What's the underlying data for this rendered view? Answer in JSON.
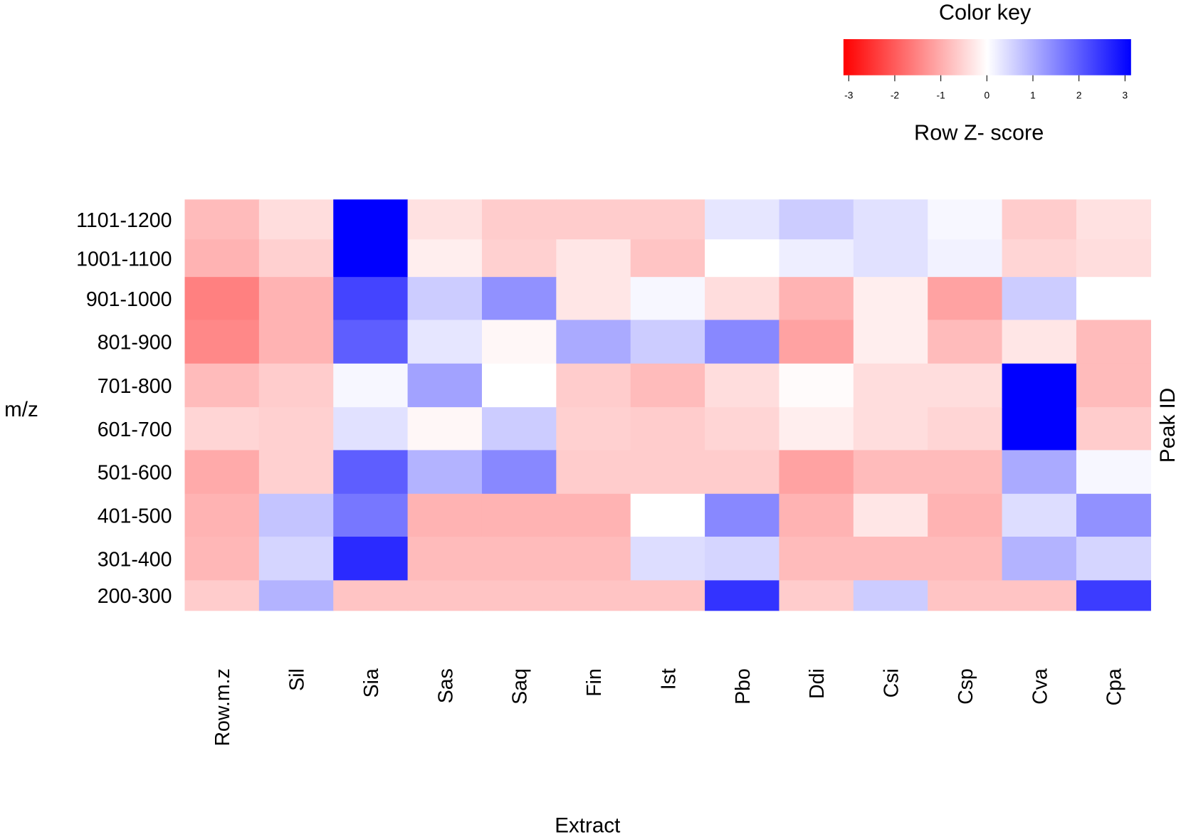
{
  "chart_data": {
    "type": "heatmap",
    "xlabel": "Extract",
    "ylabel": "m/z",
    "ylabel_right": "Peak ID",
    "columns": [
      "Row.m.z",
      "Sil",
      "Sia",
      "Sas",
      "Saq",
      "Fin",
      "Ist",
      "Pbo",
      "Ddi",
      "Csi",
      "Csp",
      "Cva",
      "Cpa"
    ],
    "rows": [
      "1101-1200",
      "1001-1100",
      "901-1000",
      "801-900",
      "701-800",
      "601-700",
      "501-600",
      "401-500",
      "301-400",
      "200-300"
    ],
    "values": [
      [
        -0.8,
        -0.4,
        3.0,
        -0.35,
        -0.6,
        -0.6,
        -0.6,
        0.3,
        0.6,
        0.35,
        0.1,
        -0.6,
        -0.35
      ],
      [
        -0.9,
        -0.55,
        3.0,
        -0.2,
        -0.55,
        -0.3,
        -0.7,
        0.0,
        0.2,
        0.35,
        0.15,
        -0.5,
        -0.4
      ],
      [
        -1.5,
        -0.9,
        2.2,
        0.6,
        1.3,
        -0.3,
        0.1,
        -0.4,
        -0.9,
        -0.2,
        -1.1,
        0.6,
        0.0
      ],
      [
        -1.4,
        -0.9,
        1.9,
        0.3,
        -0.1,
        1.0,
        0.6,
        1.4,
        -1.1,
        -0.2,
        -0.8,
        -0.3,
        -0.8
      ],
      [
        -0.8,
        -0.6,
        0.1,
        1.1,
        0.0,
        -0.6,
        -0.8,
        -0.4,
        -0.05,
        -0.4,
        -0.4,
        3.0,
        -0.8
      ],
      [
        -0.5,
        -0.55,
        0.35,
        -0.1,
        0.6,
        -0.55,
        -0.6,
        -0.5,
        -0.2,
        -0.4,
        -0.5,
        3.0,
        -0.6
      ],
      [
        -1.0,
        -0.55,
        1.9,
        0.9,
        1.4,
        -0.6,
        -0.6,
        -0.6,
        -1.1,
        -0.8,
        -0.8,
        1.0,
        0.1
      ],
      [
        -0.9,
        0.7,
        1.6,
        -0.9,
        -0.9,
        -0.9,
        0.0,
        1.4,
        -0.9,
        -0.3,
        -0.9,
        0.4,
        1.3
      ],
      [
        -0.85,
        0.5,
        2.5,
        -0.8,
        -0.8,
        -0.8,
        0.4,
        0.5,
        -0.8,
        -0.8,
        -0.8,
        0.9,
        0.5
      ],
      [
        -0.6,
        0.9,
        -0.7,
        -0.7,
        -0.7,
        -0.7,
        -0.7,
        2.4,
        -0.6,
        0.6,
        -0.7,
        -0.7,
        2.3
      ]
    ],
    "color_scale": {
      "min": -3,
      "max": 3,
      "low": "#ff0000",
      "mid": "#ffffff",
      "high": "#0000ff"
    },
    "legend": {
      "title": "Color key",
      "label": "Row  Z- score",
      "ticks": [
        "-3",
        "-2",
        "-1",
        "0",
        "1",
        "2",
        "3"
      ],
      "placement": "top-right"
    }
  }
}
